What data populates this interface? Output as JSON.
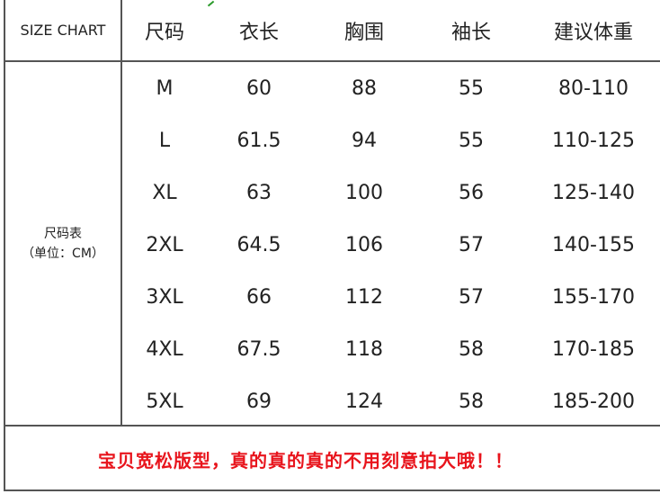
{
  "header": {
    "tag": "SIZE CHART",
    "columns": [
      "尺码",
      "衣长",
      "胸围",
      "袖长",
      "建议体重"
    ]
  },
  "side_label": {
    "line1": "尺码表",
    "line2": "（单位：CM）"
  },
  "rows": [
    [
      "M",
      "60",
      "88",
      "55",
      "80-110"
    ],
    [
      "L",
      "61.5",
      "94",
      "55",
      "110-125"
    ],
    [
      "XL",
      "63",
      "100",
      "56",
      "125-140"
    ],
    [
      "2XL",
      "64.5",
      "106",
      "57",
      "140-155"
    ],
    [
      "3XL",
      "66",
      "112",
      "57",
      "155-170"
    ],
    [
      "4XL",
      "67.5",
      "118",
      "58",
      "170-185"
    ],
    [
      "5XL",
      "69",
      "124",
      "58",
      "185-200"
    ]
  ],
  "footer": {
    "note": "宝贝宽松版型，真的真的真的不用刻意拍大哦！！",
    "note_color": "#e8141c"
  }
}
